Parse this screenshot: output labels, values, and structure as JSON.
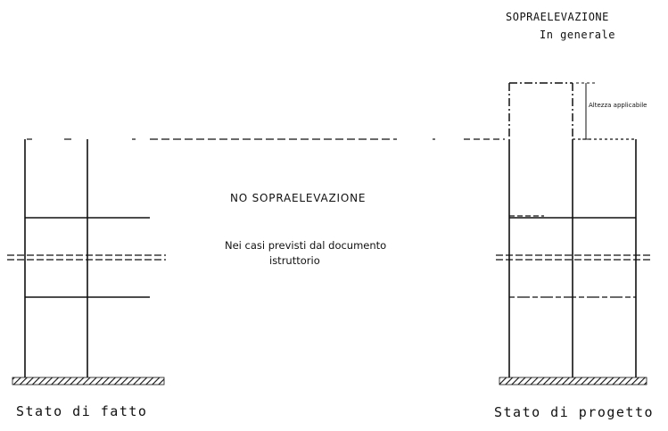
{
  "header": {
    "title_line1": "SOPRAELEVAZIONE",
    "title_line2": "In generale"
  },
  "center": {
    "no_label": "NO SOPRAELEVAZIONE",
    "note_line1": "Nei casi previsti dal documento",
    "note_line2": "istruttorio"
  },
  "dimension": {
    "label": "Altezza applicabile"
  },
  "left_frame": {
    "caption": "Stato di fatto"
  },
  "right_frame": {
    "caption": "Stato di progetto"
  },
  "colors": {
    "ink": "#111111",
    "background": "#ffffff"
  }
}
